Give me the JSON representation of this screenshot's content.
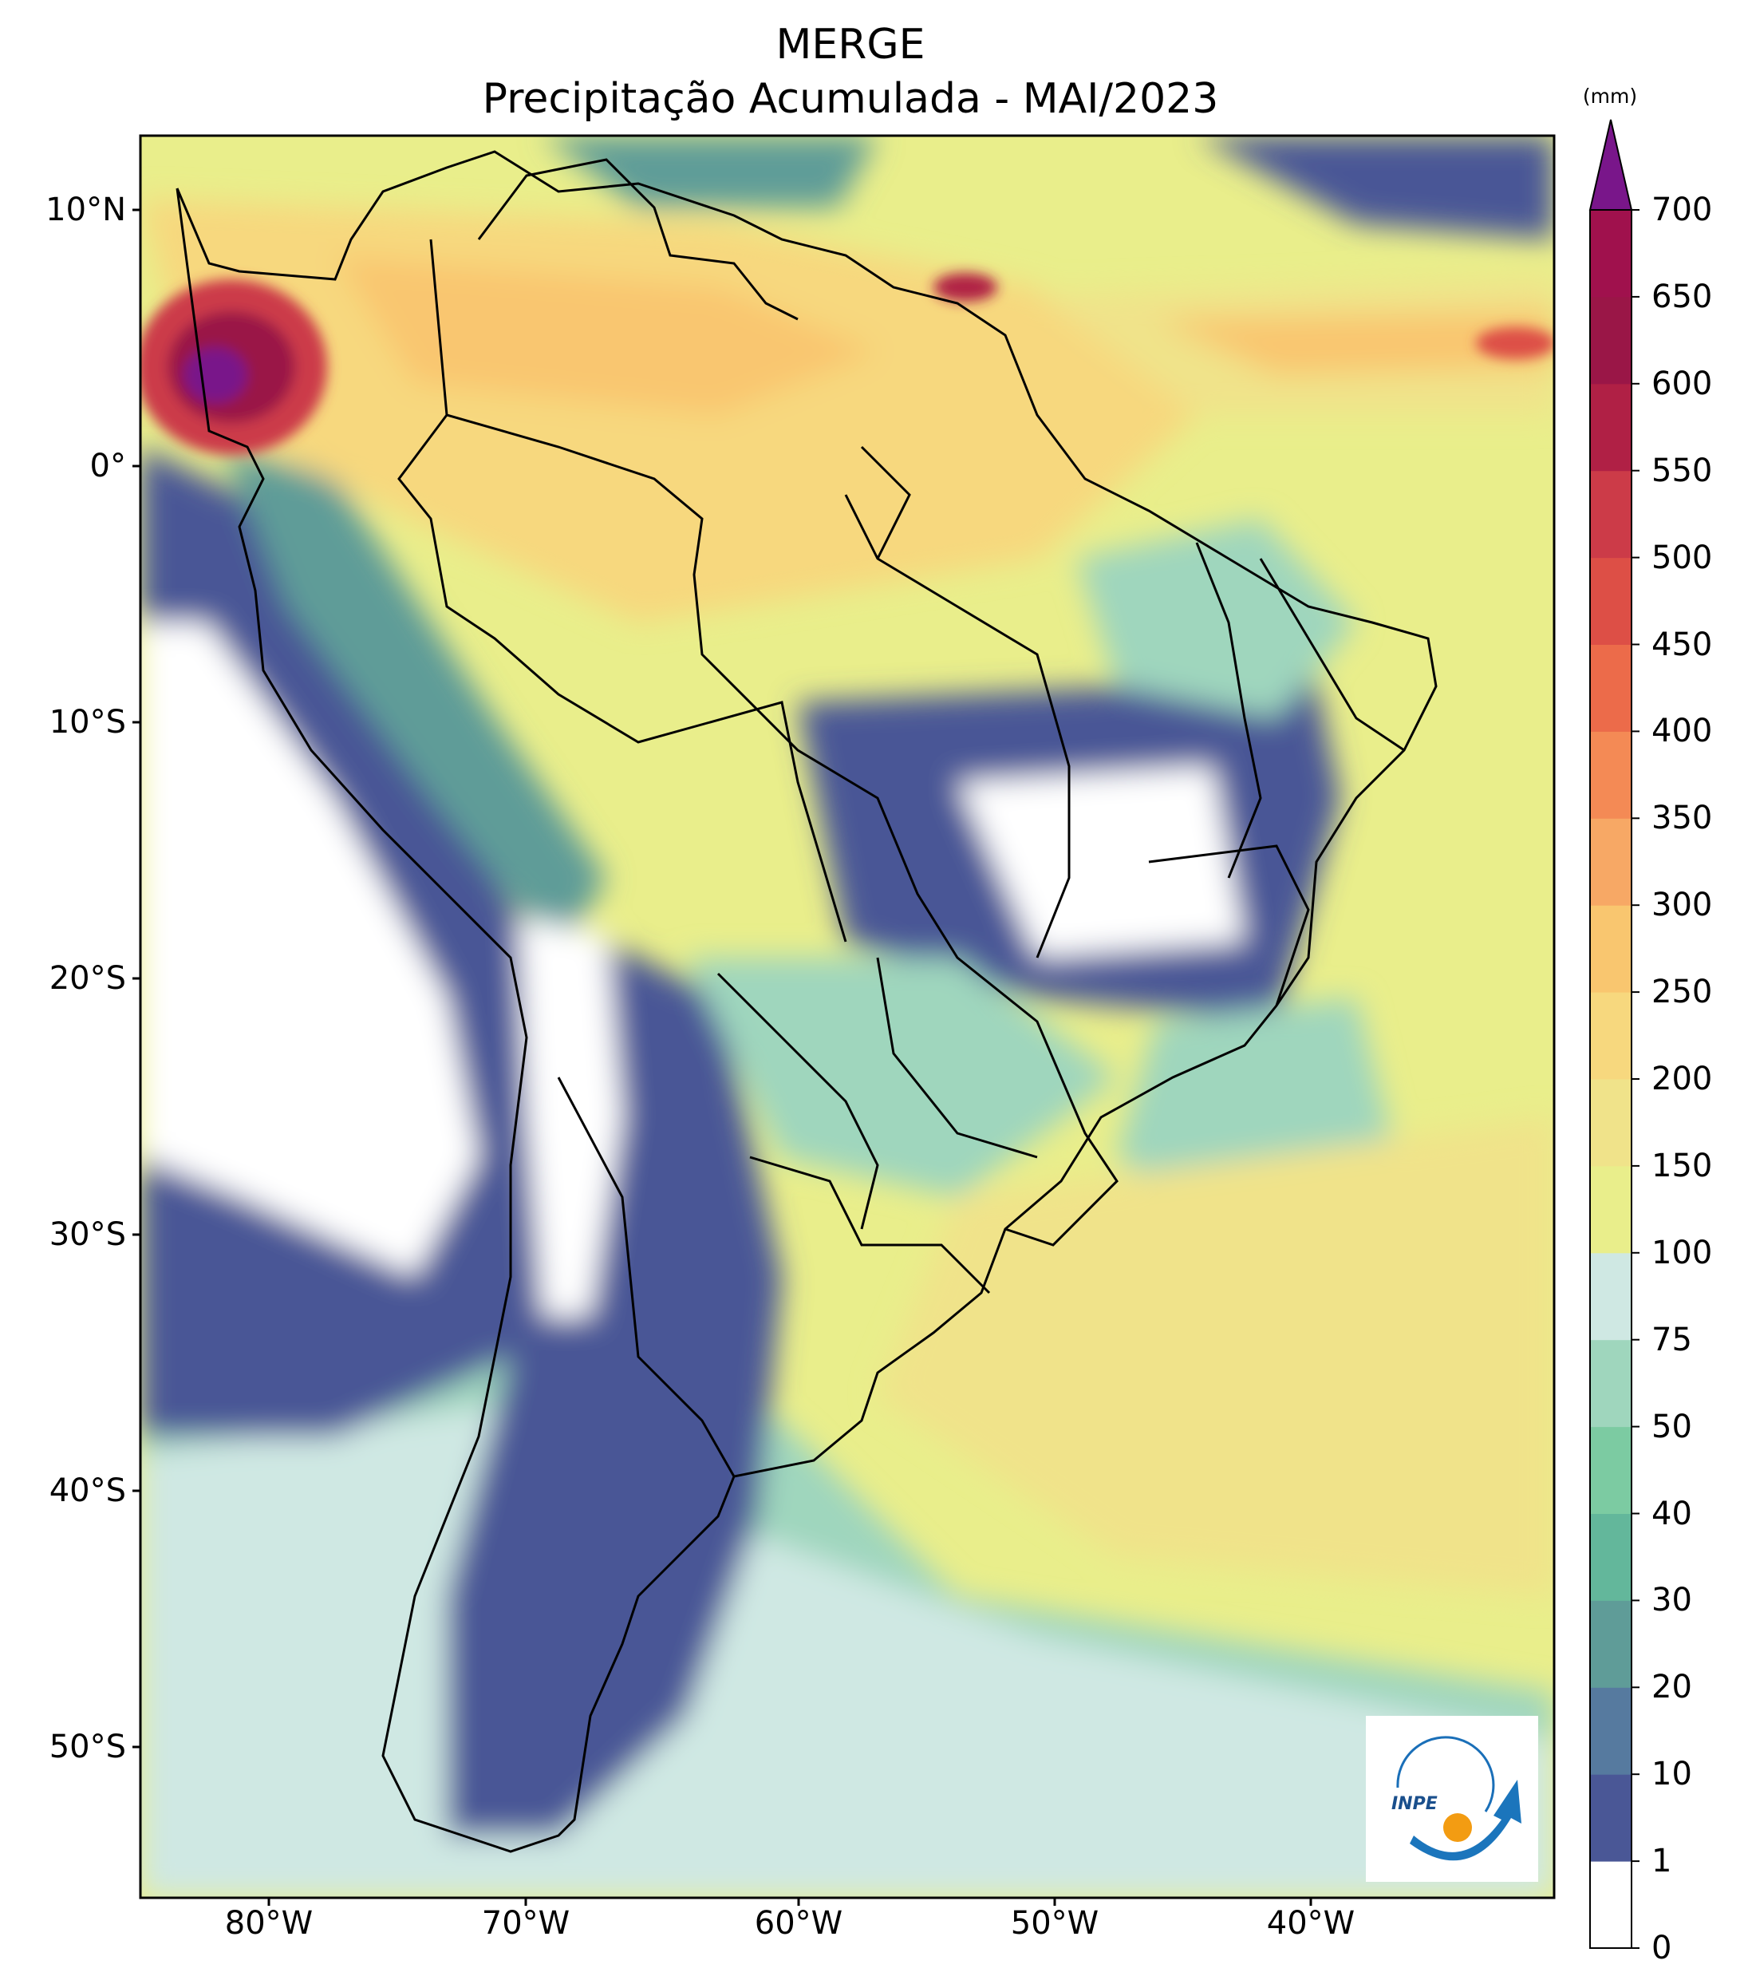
{
  "title": {
    "line1": "MERGE",
    "line2": "Precipitação Acumulada - MAI/2023"
  },
  "map": {
    "lat_ticks": [
      "10°N",
      "0°",
      "10°S",
      "20°S",
      "30°S",
      "40°S",
      "50°S"
    ],
    "lon_ticks": [
      "80°W",
      "70°W",
      "60°W",
      "50°W",
      "40°W"
    ],
    "extent": {
      "lon": [
        -85,
        -30
      ],
      "lat": [
        -56,
        13
      ]
    }
  },
  "colorbar": {
    "unit": "(mm)",
    "ticks": [
      "0",
      "1",
      "10",
      "20",
      "30",
      "40",
      "50",
      "75",
      "100",
      "150",
      "200",
      "250",
      "300",
      "350",
      "400",
      "450",
      "500",
      "550",
      "600",
      "650",
      "700"
    ],
    "colors": [
      "#ffffff",
      "#4a5796",
      "#567a9f",
      "#5f9c98",
      "#63b79b",
      "#7ccba2",
      "#9fd6bd",
      "#cfe8e3",
      "#e9ee8b",
      "#f0e38a",
      "#f7d87e",
      "#f9c66f",
      "#f7a865",
      "#f48a55",
      "#ec6b4a",
      "#dd4f46",
      "#cc3b48",
      "#b02045",
      "#9a1647",
      "#a0114d"
    ],
    "extend_color": "#79168a"
  },
  "logo": {
    "text": "INPE"
  }
}
